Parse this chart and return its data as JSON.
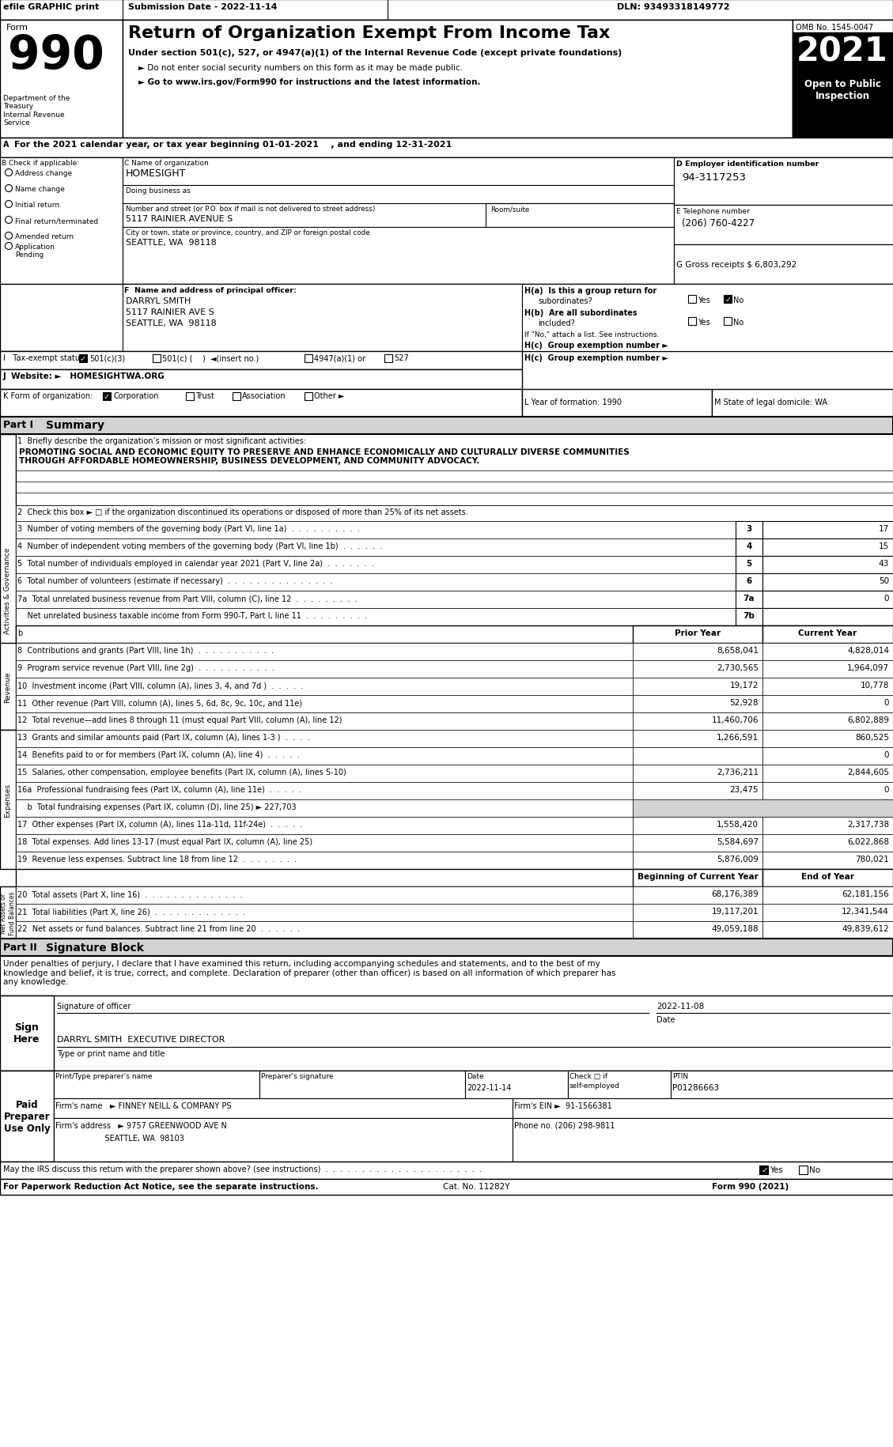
{
  "title": "Return of Organization Exempt From Income Tax",
  "subtitle1": "Under section 501(c), 527, or 4947(a)(1) of the Internal Revenue Code (except private foundations)",
  "subtitle2": "► Do not enter social security numbers on this form as it may be made public.",
  "subtitle3": "► Go to www.irs.gov/Form990 for instructions and the latest information.",
  "omb": "OMB No. 1545-0047",
  "year": "2021",
  "dept": "Department of the\nTreasury\nInternal Revenue\nService",
  "year_line": "For the 2021 calendar year, or tax year beginning 01-01-2021    , and ending 12-31-2021",
  "org_name": "HOMESIGHT",
  "doing_business": "Doing business as",
  "address_label": "Number and street (or P.O. box if mail is not delivered to street address)",
  "address_val": "5117 RAINIER AVENUE S",
  "room_label": "Room/suite",
  "city_label": "City or town, state or province, country, and ZIP or foreign postal code",
  "city_val": "SEATTLE, WA  98118",
  "ein": "94-3117253",
  "phone": "(206) 760-4227",
  "gross_receipts": "6,803,292",
  "principal_name": "DARRYL SMITH",
  "principal_addr1": "5117 RAINIER AVE S",
  "principal_addr2": "SEATTLE, WA  98118",
  "checkboxes_b": [
    "Address change",
    "Name change",
    "Initial return",
    "Final return/terminated",
    "Amended return",
    "Application\nPending"
  ],
  "j_val": "HOMESIGHTWA.ORG",
  "l_label": "L Year of formation: 1990",
  "m_label": "M State of legal domicile: WA",
  "mission_label": "1  Briefly describe the organization’s mission or most significant activities:",
  "mission_text1": "PROMOTING SOCIAL AND ECONOMIC EQUITY TO PRESERVE AND ENHANCE ECONOMICALLY AND CULTURALLY DIVERSE COMMUNITIES",
  "mission_text2": "THROUGH AFFORDABLE HOMEOWNERSHIP, BUSINESS DEVELOPMENT, AND COMMUNITY ADVOCACY.",
  "line2": "2  Check this box ► □ if the organization discontinued its operations or disposed of more than 25% of its net assets.",
  "line3": "3  Number of voting members of the governing body (Part VI, line 1a)  .  .  .  .  .  .  .  .  .  .",
  "line3_num": "3",
  "line3_val": "17",
  "line4": "4  Number of independent voting members of the governing body (Part VI, line 1b)  .  .  .  .  .  .",
  "line4_num": "4",
  "line4_val": "15",
  "line5": "5  Total number of individuals employed in calendar year 2021 (Part V, line 2a)  .  .  .  .  .  .  .",
  "line5_num": "5",
  "line5_val": "43",
  "line6": "6  Total number of volunteers (estimate if necessary)  .  .  .  .  .  .  .  .  .  .  .  .  .  .  .",
  "line6_num": "6",
  "line6_val": "50",
  "line7a": "7a  Total unrelated business revenue from Part VIII, column (C), line 12  .  .  .  .  .  .  .  .  .",
  "line7a_num": "7a",
  "line7a_val": "0",
  "line7b": "    Net unrelated business taxable income from Form 990-T, Part I, line 11  .  .  .  .  .  .  .  .  .",
  "line7b_num": "7b",
  "line7b_val": "",
  "col_prior": "Prior Year",
  "col_current": "Current Year",
  "line8": "8  Contributions and grants (Part VIII, line 1h)  .  .  .  .  .  .  .  .  .  .  .",
  "line8_prior": "8,658,041",
  "line8_current": "4,828,014",
  "line9": "9  Program service revenue (Part VIII, line 2g)  .  .  .  .  .  .  .  .  .  .  .",
  "line9_prior": "2,730,565",
  "line9_current": "1,964,097",
  "line10": "10  Investment income (Part VIII, column (A), lines 3, 4, and 7d )  .  .  .  .  .",
  "line10_prior": "19,172",
  "line10_current": "10,778",
  "line11": "11  Other revenue (Part VIII, column (A), lines 5, 6d, 8c, 9c, 10c, and 11e)",
  "line11_prior": "52,928",
  "line11_current": "0",
  "line12": "12  Total revenue—add lines 8 through 11 (must equal Part VIII, column (A), line 12)",
  "line12_prior": "11,460,706",
  "line12_current": "6,802,889",
  "line13": "13  Grants and similar amounts paid (Part IX, column (A), lines 1-3 )  .  .  .  .",
  "line13_prior": "1,266,591",
  "line13_current": "860,525",
  "line14": "14  Benefits paid to or for members (Part IX, column (A), line 4)  .  .  .  .  .",
  "line14_prior": "",
  "line14_current": "0",
  "line15": "15  Salaries, other compensation, employee benefits (Part IX, column (A), lines 5-10)",
  "line15_prior": "2,736,211",
  "line15_current": "2,844,605",
  "line16a": "16a  Professional fundraising fees (Part IX, column (A), line 11e)  .  .  .  .  .",
  "line16a_prior": "23,475",
  "line16a_current": "0",
  "line16b": "    b  Total fundraising expenses (Part IX, column (D), line 25) ► 227,703",
  "line17": "17  Other expenses (Part IX, column (A), lines 11a-11d, 11f-24e)  .  .  .  .  .",
  "line17_prior": "1,558,420",
  "line17_current": "2,317,738",
  "line18": "18  Total expenses. Add lines 13-17 (must equal Part IX, column (A), line 25)",
  "line18_prior": "5,584,697",
  "line18_current": "6,022,868",
  "line19": "19  Revenue less expenses. Subtract line 18 from line 12  .  .  .  .  .  .  .  .",
  "line19_prior": "5,876,009",
  "line19_current": "780,021",
  "col_begin": "Beginning of Current Year",
  "col_end": "End of Year",
  "line20": "20  Total assets (Part X, line 16)  .  .  .  .  .  .  .  .  .  .  .  .  .  .",
  "line20_begin": "68,176,389",
  "line20_end": "62,181,156",
  "line21": "21  Total liabilities (Part X, line 26)  .  .  .  .  .  .  .  .  .  .  .  .  .",
  "line21_begin": "19,117,201",
  "line21_end": "12,341,544",
  "line22": "22  Net assets or fund balances. Subtract line 21 from line 20  .  .  .  .  .  .",
  "line22_begin": "49,059,188",
  "line22_end": "49,839,612",
  "sig_text": "Under penalties of perjury, I declare that I have examined this return, including accompanying schedules and statements, and to the best of my\nknowledge and belief, it is true, correct, and complete. Declaration of preparer (other than officer) is based on all information of which preparer has\nany knowledge.",
  "sig_date": "2022-11-08",
  "sig_officer": "DARRYL SMITH  EXECUTIVE DIRECTOR",
  "preparer_name_label": "Print/Type preparer’s name",
  "preparer_sig_label": "Preparer’s signature",
  "preparer_date_label": "Date",
  "preparer_date": "2022-11-14",
  "preparer_check_label": "Check □ if\nself-employed",
  "preparer_ptin_label": "PTIN",
  "preparer_ptin": "P01286663",
  "firm_name": "► FINNEY NEILL & COMPANY PS",
  "firm_ein_label": "Firm’s EIN ►",
  "firm_ein": "91-1566381",
  "firm_addr": "► 9757 GREENWOOD AVE N",
  "firm_city": "SEATTLE, WA  98103",
  "firm_phone": "(206) 298-9811",
  "discuss_label": "May the IRS discuss this return with the preparer shown above? (see instructions)  .  .  .  .  .  .  .  .  .  .  .  .  .  .  .  .  .  .  .  .  .  .",
  "footer1": "For Paperwork Reduction Act Notice, see the separate instructions.",
  "footer_cat": "Cat. No. 11282Y",
  "footer_form": "Form 990 (2021)"
}
